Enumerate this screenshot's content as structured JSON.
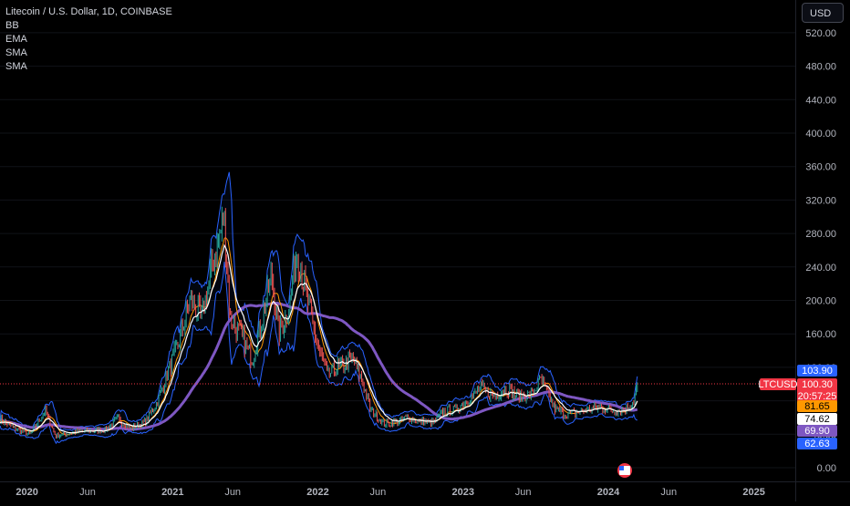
{
  "legend": {
    "symbol": "Litecoin / U.S. Dollar, 1D, COINBASE",
    "indicators": [
      "BB",
      "EMA",
      "SMA",
      "SMA"
    ]
  },
  "currency_button": "USD",
  "colors": {
    "background": "#000000",
    "bb": "#2962ff",
    "ema": "#ffffff",
    "sma_fast": "#ff9800",
    "sma_slow": "#7e57c2",
    "price_line": "#f23645",
    "up": "#26a69a",
    "down": "#ef5350"
  },
  "chart_data": {
    "type": "line",
    "title": "Litecoin / U.S. Dollar, 1D, COINBASE",
    "y_axis": {
      "ticks": [
        "0.00",
        "40.00",
        "80.00",
        "120.00",
        "160.00",
        "200.00",
        "240.00",
        "280.00",
        "320.00",
        "360.00",
        "400.00",
        "440.00",
        "480.00",
        "520.00"
      ],
      "ylim": [
        0,
        540
      ]
    },
    "x_axis": {
      "ticks": [
        "2020",
        "Jun",
        "2021",
        "Jun",
        "2022",
        "Jun",
        "2023",
        "Jun",
        "2024",
        "Jun",
        "2025"
      ],
      "xlim": [
        "2019-10-25",
        "2025-04-15"
      ]
    },
    "series": [
      {
        "name": "price",
        "x": [
          "2019-10-25",
          "2019-12-01",
          "2020-01-10",
          "2020-02-15",
          "2020-03-13",
          "2020-04-20",
          "2020-06-01",
          "2020-07-15",
          "2020-08-15",
          "2020-09-20",
          "2020-10-25",
          "2020-11-25",
          "2020-12-20",
          "2021-01-10",
          "2021-02-15",
          "2021-03-15",
          "2021-04-10",
          "2021-05-10",
          "2021-05-25",
          "2021-06-20",
          "2021-07-20",
          "2021-08-15",
          "2021-09-07",
          "2021-09-25",
          "2021-10-20",
          "2021-11-10",
          "2021-12-05",
          "2022-01-01",
          "2022-01-25",
          "2022-02-20",
          "2022-03-30",
          "2022-04-25",
          "2022-05-12",
          "2022-06-18",
          "2022-07-20",
          "2022-08-15",
          "2022-09-15",
          "2022-10-20",
          "2022-11-10",
          "2022-12-15",
          "2023-01-15",
          "2023-02-15",
          "2023-03-20",
          "2023-04-20",
          "2023-05-20",
          "2023-06-25",
          "2023-07-15",
          "2023-08-20",
          "2023-09-15",
          "2023-10-15",
          "2023-11-15",
          "2023-12-15",
          "2024-01-15",
          "2024-02-15",
          "2024-03-05",
          "2024-03-14"
        ],
        "values": [
          58,
          47,
          40,
          68,
          38,
          42,
          44,
          45,
          58,
          47,
          55,
          80,
          115,
          140,
          200,
          180,
          240,
          300,
          180,
          160,
          130,
          180,
          230,
          160,
          190,
          260,
          200,
          145,
          110,
          120,
          130,
          100,
          70,
          52,
          55,
          60,
          55,
          54,
          66,
          70,
          82,
          95,
          85,
          95,
          85,
          88,
          105,
          70,
          64,
          66,
          70,
          72,
          68,
          70,
          80,
          100.3
        ]
      },
      {
        "name": "EMA",
        "value": 74.62
      },
      {
        "name": "SMA",
        "value": 81.65
      },
      {
        "name": "SMA",
        "value": 69.9
      },
      {
        "name": "BB upper",
        "value": 103.9
      },
      {
        "name": "BB lower",
        "value": 62.63
      }
    ],
    "price_tags": [
      {
        "label": "103.90",
        "color": "#2962ff"
      },
      {
        "label": "LTCUSD",
        "value": 100.3,
        "color": "#f23645",
        "sub": "20:57:25"
      },
      {
        "label": "81.65",
        "color": "#ff9800"
      },
      {
        "label": "74.62",
        "color": "#ffffff"
      },
      {
        "label": "69.90",
        "color": "#7e57c2"
      },
      {
        "label": "62.63",
        "color": "#2962ff"
      }
    ]
  }
}
